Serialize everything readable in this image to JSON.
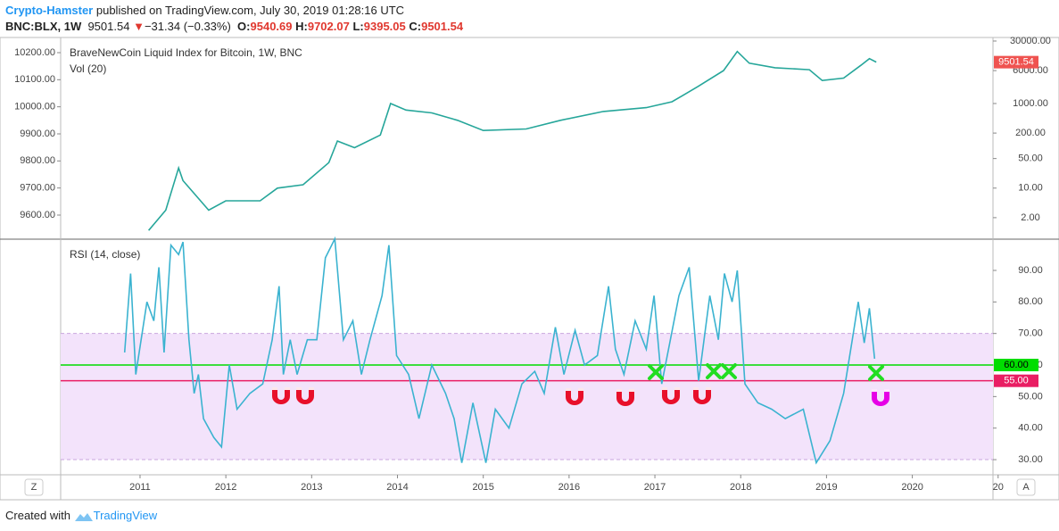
{
  "header": {
    "author": "Crypto-Hamster",
    "published": " published on TradingView.com, July 30, 2019 01:28:16 UTC",
    "symbol": "BNC:BLX, 1W",
    "last": "9501.54",
    "arrow": "▼",
    "change": "−31.34 (−0.33%)",
    "o_label": "O:",
    "o": "9540.69",
    "h_label": "H:",
    "h": "9702.07",
    "l_label": "L:",
    "l": "9395.05",
    "c_label": "C:",
    "c": "9501.54"
  },
  "footer": {
    "text": "Created with",
    "brand": "TradingView"
  },
  "buttons": {
    "left": "Z",
    "right": "A"
  },
  "chart_data": [
    {
      "type": "line",
      "title": "BraveNewCoin Liquid Index for Bitcoin, 1W, BNC",
      "subtitle": "Vol (20)",
      "x": [
        2011.1,
        2011.3,
        2011.45,
        2011.5,
        2011.8,
        2012.0,
        2012.4,
        2012.6,
        2012.9,
        2013.2,
        2013.3,
        2013.5,
        2013.8,
        2013.92,
        2014.1,
        2014.4,
        2014.7,
        2015.0,
        2015.5,
        2015.9,
        2016.4,
        2016.9,
        2017.2,
        2017.5,
        2017.8,
        2017.96,
        2018.1,
        2018.4,
        2018.8,
        2018.95,
        2019.2,
        2019.4,
        2019.5,
        2019.58
      ],
      "series": [
        {
          "name": "BraveNewCoin Liquid Index for Bitcoin, 1W, BNC",
          "color": "#26a69a",
          "values": [
            1,
            3,
            30,
            15,
            3,
            5,
            5,
            10,
            12,
            40,
            130,
            90,
            180,
            1000,
            700,
            600,
            400,
            230,
            250,
            400,
            650,
            800,
            1100,
            2500,
            6000,
            17000,
            9000,
            7000,
            6300,
            3500,
            4000,
            8000,
            11500,
            9501.54
          ]
        }
      ],
      "last_label": "9501.54",
      "last_color": "#ef5350",
      "xlim": [
        2010.075,
        2020.94
      ],
      "ylim": [
        0.62,
        36400
      ],
      "log_y": true,
      "yticks": [
        {
          "value": 30000,
          "label": "30000.00"
        },
        {
          "value": 6000,
          "label": "6000.00"
        },
        {
          "value": 1000,
          "label": "1000.00"
        },
        {
          "value": 200,
          "label": "200.00"
        },
        {
          "value": 50,
          "label": "50.00"
        },
        {
          "value": 10,
          "label": "10.00"
        },
        {
          "value": 2,
          "label": "2.00"
        }
      ],
      "y2lim": [
        9511,
        10256
      ],
      "y2ticks": [
        {
          "value": 10200,
          "label": "10200.00"
        },
        {
          "value": 10100,
          "label": "10100.00"
        },
        {
          "value": 10000,
          "label": "10000.00"
        },
        {
          "value": 9900,
          "label": "9900.00"
        },
        {
          "value": 9800,
          "label": "9800.00"
        },
        {
          "value": 9700,
          "label": "9700.00"
        },
        {
          "value": 9600,
          "label": "9600.00"
        }
      ]
    },
    {
      "type": "line",
      "title": "RSI (14, close)",
      "x": [
        2010.82,
        2010.89,
        2010.95,
        2011.08,
        2011.16,
        2011.22,
        2011.28,
        2011.36,
        2011.45,
        2011.5,
        2011.57,
        2011.63,
        2011.68,
        2011.74,
        2011.86,
        2011.95,
        2012.04,
        2012.13,
        2012.28,
        2012.43,
        2012.54,
        2012.62,
        2012.67,
        2012.75,
        2012.83,
        2012.95,
        2013.06,
        2013.16,
        2013.27,
        2013.37,
        2013.48,
        2013.58,
        2013.68,
        2013.82,
        2013.9,
        2013.99,
        2014.13,
        2014.25,
        2014.4,
        2014.56,
        2014.66,
        2014.75,
        2014.88,
        2015.03,
        2015.14,
        2015.3,
        2015.45,
        2015.6,
        2015.71,
        2015.84,
        2015.94,
        2016.07,
        2016.18,
        2016.33,
        2016.46,
        2016.54,
        2016.64,
        2016.77,
        2016.9,
        2016.99,
        2017.08,
        2017.18,
        2017.28,
        2017.4,
        2017.51,
        2017.64,
        2017.74,
        2017.81,
        2017.9,
        2017.96,
        2018.05,
        2018.2,
        2018.36,
        2018.52,
        2018.73,
        2018.88,
        2019.04,
        2019.2,
        2019.3,
        2019.37,
        2019.44,
        2019.5,
        2019.56
      ],
      "series": [
        {
          "name": "RSI (14, close)",
          "color": "#3bb3d0",
          "values": [
            64,
            89,
            57,
            80,
            74,
            91,
            64,
            98,
            95,
            99,
            68,
            51,
            57,
            43,
            37,
            34,
            60,
            46,
            51,
            54,
            68,
            85,
            57,
            68,
            57,
            68,
            68,
            94,
            100,
            68,
            74,
            57,
            68,
            82,
            98,
            63,
            57,
            43,
            60,
            51,
            43,
            29,
            48,
            29,
            46,
            40,
            54,
            58,
            51,
            72,
            57,
            71,
            60,
            63,
            85,
            65,
            57,
            74,
            65,
            82,
            54,
            68,
            82,
            91,
            55,
            82,
            68,
            89,
            80,
            90,
            54,
            48,
            46,
            43,
            46,
            29,
            36,
            51,
            68,
            80,
            67,
            78,
            62
          ]
        }
      ],
      "band": [
        30,
        70
      ],
      "band_color": "#f3e3fb",
      "levels": {
        "values": [
          60,
          55
        ],
        "value_labels": [
          "60.00",
          "55.00"
        ],
        "colors": [
          "#00dd00",
          "#e91e63"
        ]
      },
      "xlim": [
        2010.075,
        2020.94
      ],
      "ylim": [
        25.2,
        99.9
      ],
      "yticks": [
        {
          "value": 90,
          "label": "90.00"
        },
        {
          "value": 80,
          "label": "80.00"
        },
        {
          "value": 70,
          "label": "70.00"
        },
        {
          "value": 60,
          "label": "60.00"
        },
        {
          "value": 50,
          "label": "50.00"
        },
        {
          "value": 40,
          "label": "40.00"
        },
        {
          "value": 30,
          "label": "30.00"
        }
      ],
      "xticks": [
        2011,
        2012,
        2013,
        2014,
        2015,
        2016,
        2017,
        2018,
        2019,
        2020,
        {
          "value": 2021,
          "label": "20"
        }
      ]
    }
  ]
}
